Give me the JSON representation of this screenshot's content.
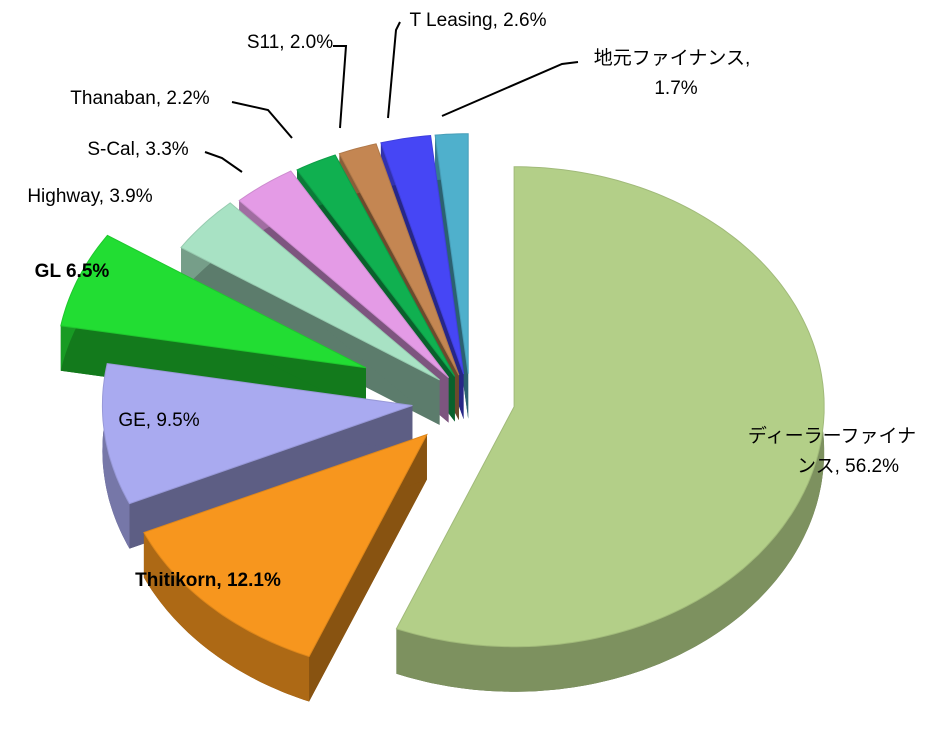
{
  "chart_data": {
    "type": "pie3d",
    "categories": [
      "ディーラーファイナンス",
      "Thitikorn",
      "GE",
      "GL",
      "Highway",
      "S-Cal",
      "Thanaban",
      "S11",
      "T Leasing",
      "地元ファイナンス"
    ],
    "values": [
      56.2,
      12.1,
      9.5,
      6.5,
      3.9,
      3.3,
      2.2,
      2.0,
      2.6,
      1.7
    ],
    "labels": [
      [
        "ディーラーファイナ",
        "ンス, 56.2%"
      ],
      [
        "Thitikorn, 12.1%"
      ],
      [
        "GE, 9.5%"
      ],
      [
        "GL 6.5%"
      ],
      [
        "Highway, 3.9%"
      ],
      [
        "S-Cal, 3.3%"
      ],
      [
        "Thanaban, 2.2%"
      ],
      [
        "S11, 2.0%"
      ],
      [
        "T Leasing, 2.6%"
      ],
      [
        "地元ファイナンス,",
        "1.7%"
      ]
    ],
    "bold_labels": [
      false,
      true,
      false,
      true,
      false,
      false,
      false,
      false,
      false,
      false
    ],
    "colors": [
      "#b3cf88",
      "#f7961e",
      "#a9aaf0",
      "#22dd33",
      "#a8e2c4",
      "#e49be6",
      "#10b050",
      "#c48652",
      "#4646f5",
      "#4fb0cc"
    ]
  }
}
